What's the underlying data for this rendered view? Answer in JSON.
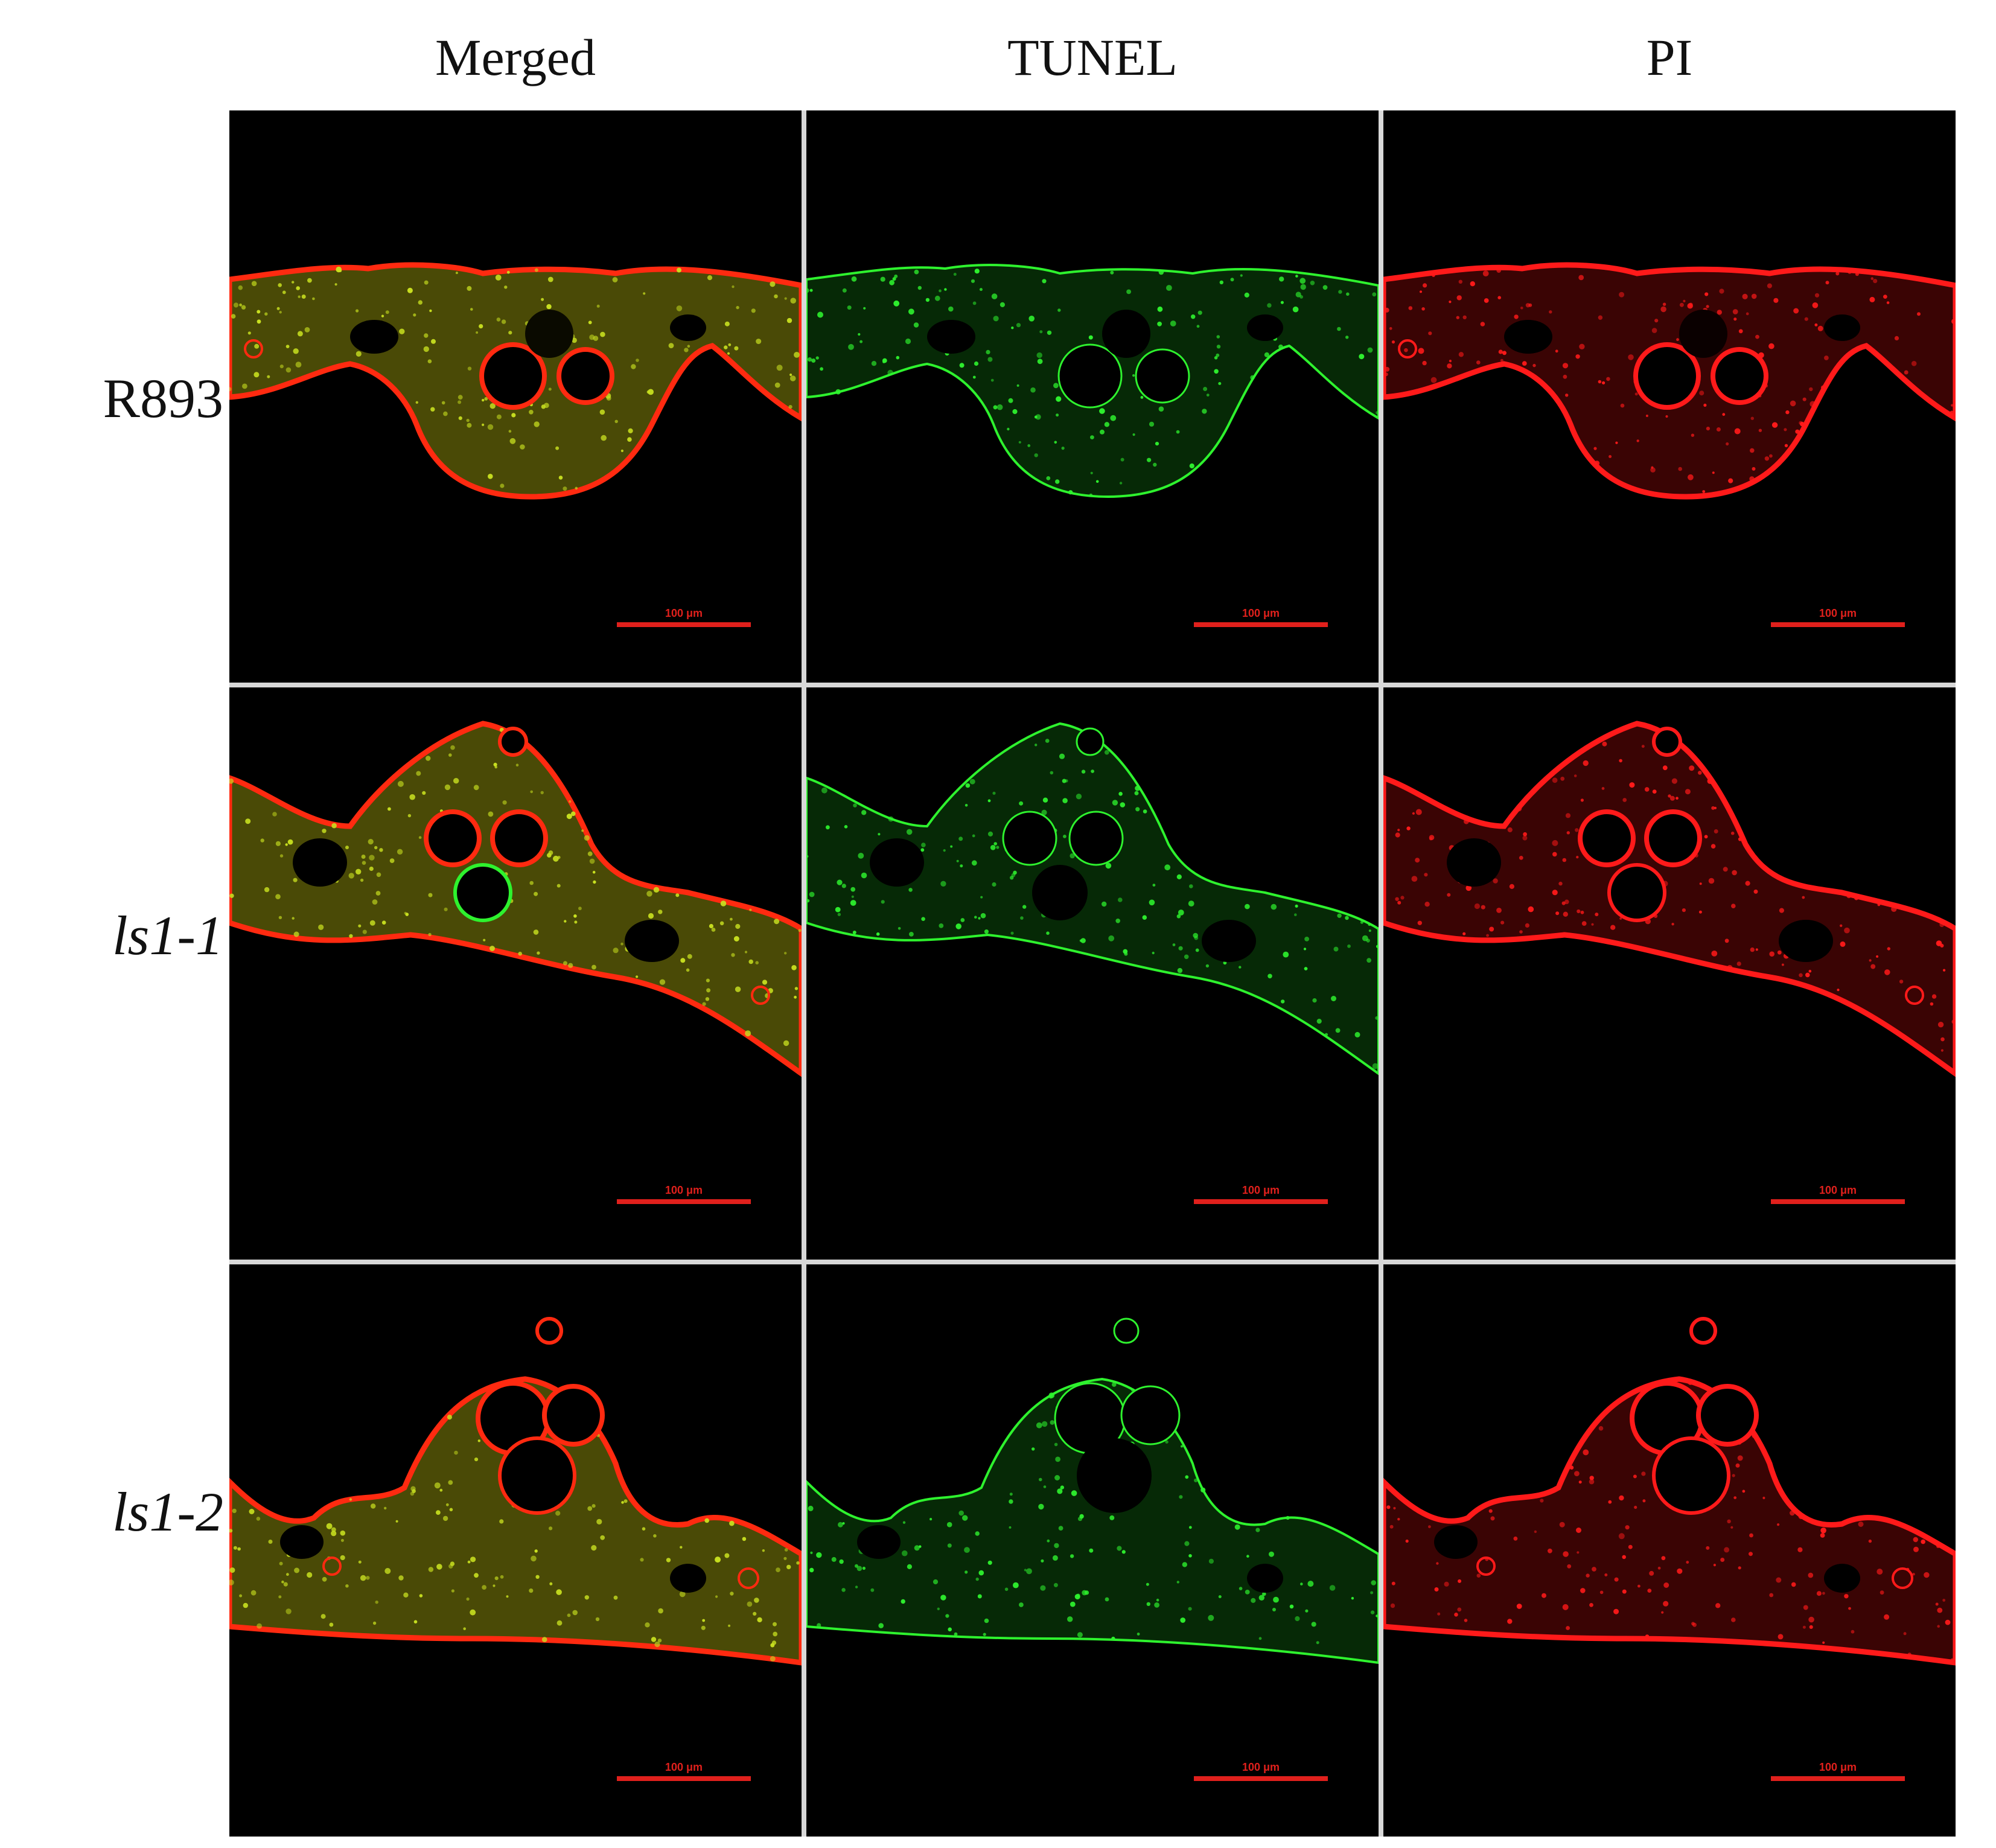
{
  "columns": [
    {
      "label": "Merged"
    },
    {
      "label": "TUNEL"
    },
    {
      "label": "PI"
    }
  ],
  "rows": [
    {
      "label": "R893",
      "italic": false
    },
    {
      "label": "ls1-1",
      "italic": true
    },
    {
      "label": "ls1-2",
      "italic": true
    }
  ],
  "scale_bar": {
    "label": "100 μm",
    "color": "#e0201c"
  },
  "channel_colors": {
    "merged_fill": "#4a4a06",
    "merged_edge": "#ff2a10",
    "tunel": "#2ef22e",
    "pi": "#ff1a1a"
  }
}
